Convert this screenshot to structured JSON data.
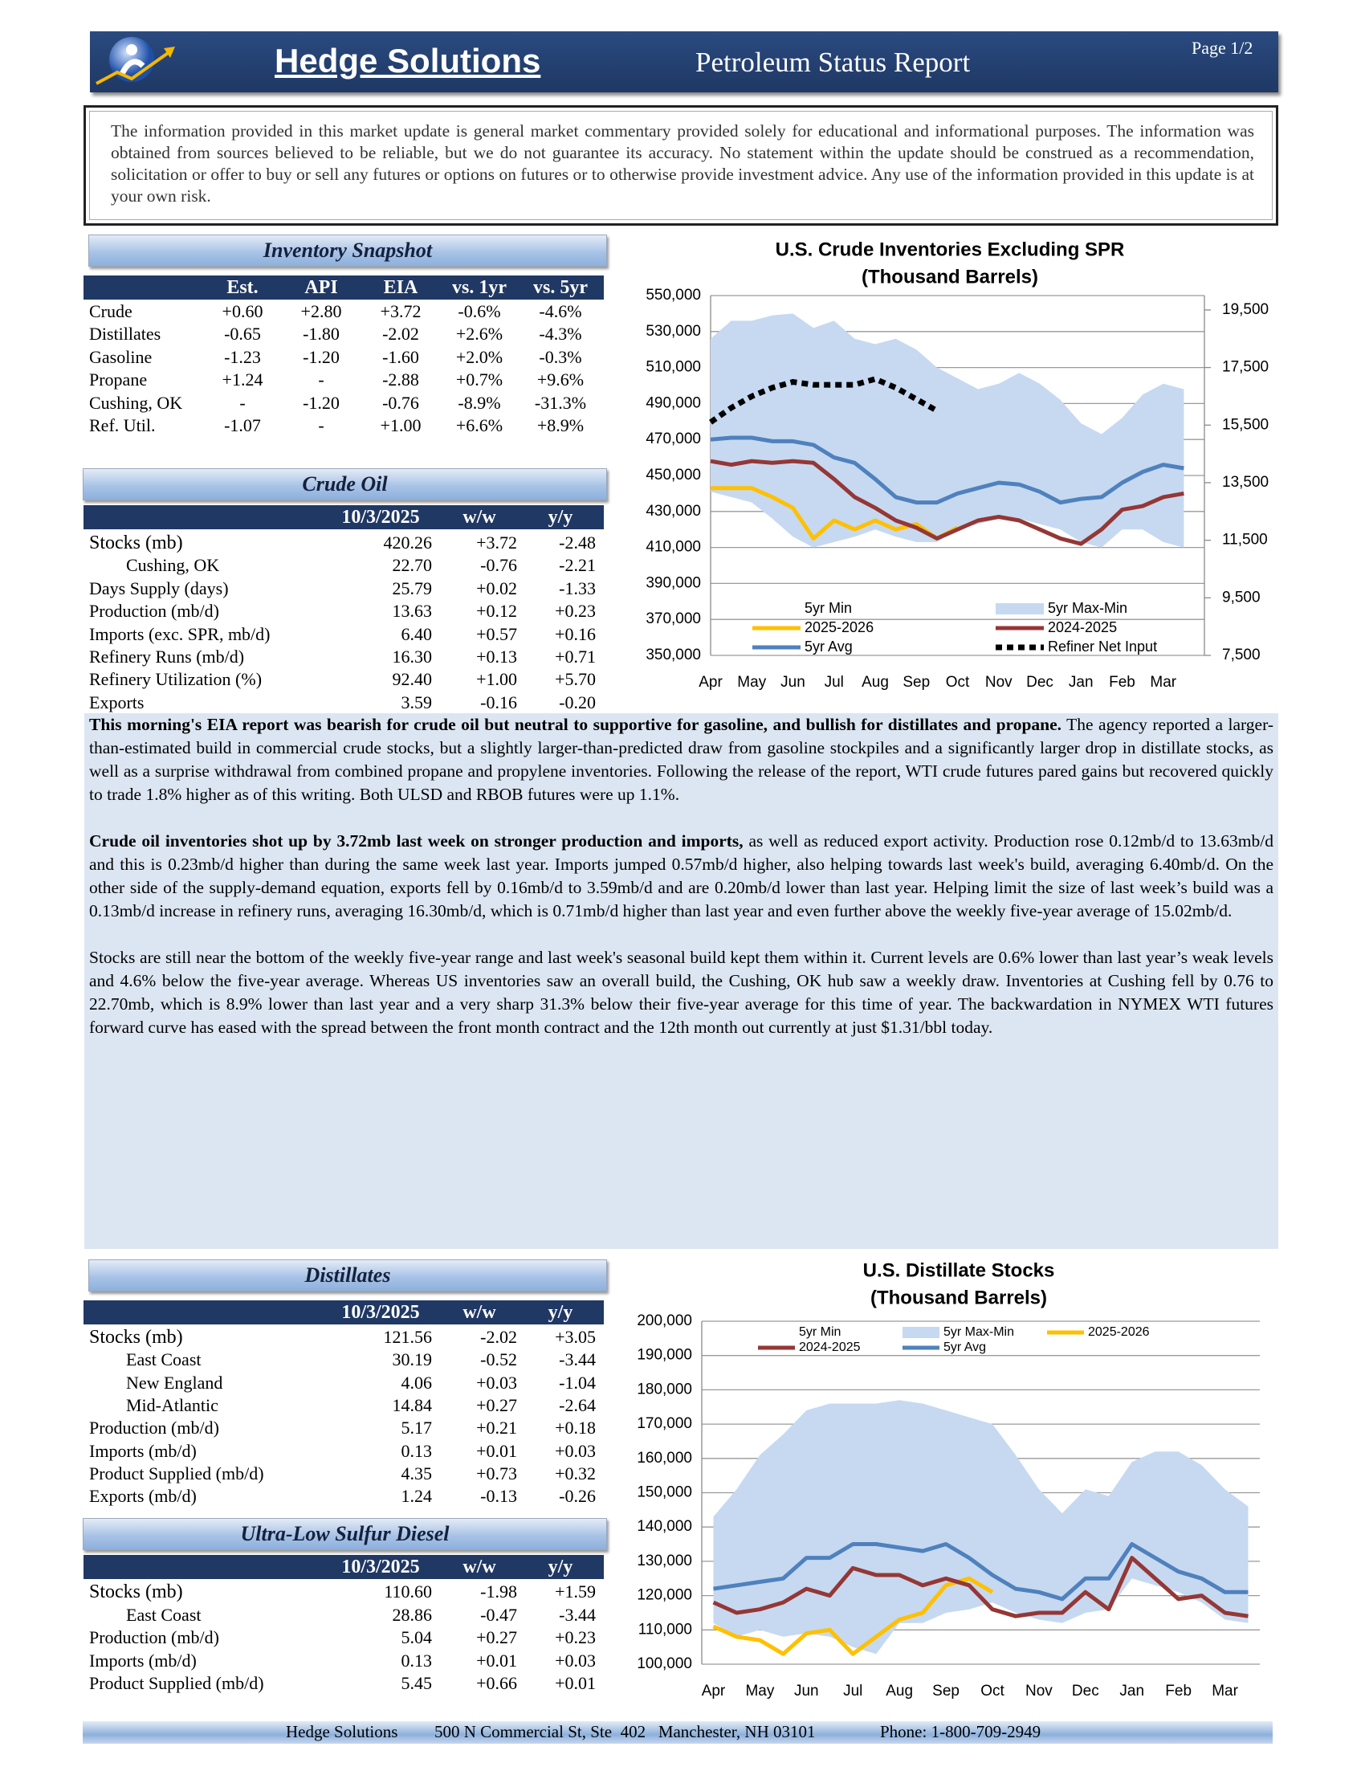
{
  "header": {
    "brand": "Hedge Solutions",
    "title": "Petroleum Status Report",
    "page": "Page 1/2"
  },
  "disclaimer": "The information provided in this market update is general market commentary provided solely for educational and informational purposes.  The information was obtained from sources believed to be reliable, but we do not guarantee its accuracy.  No statement within the update should be construed as a recommendation, solicitation or offer to buy or sell any futures or options on futures or to otherwise provide investment advice.  Any use of the information provided in this update is at your own risk.",
  "inventory_snapshot": {
    "title": "Inventory Snapshot",
    "columns": [
      "Est.",
      "API",
      "EIA",
      "vs. 1yr",
      "vs. 5yr"
    ],
    "rows": [
      [
        "Crude",
        "+0.60",
        "+2.80",
        "+3.72",
        "-0.6%",
        "-4.6%"
      ],
      [
        "Distillates",
        "-0.65",
        "-1.80",
        "-2.02",
        "+2.6%",
        "-4.3%"
      ],
      [
        "Gasoline",
        "-1.23",
        "-1.20",
        "-1.60",
        "+2.0%",
        "-0.3%"
      ],
      [
        "Propane",
        "+1.24",
        "-",
        "-2.88",
        "+0.7%",
        "+9.6%"
      ],
      [
        "Cushing, OK",
        "-",
        "-1.20",
        "-0.76",
        "-8.9%",
        "-31.3%"
      ],
      [
        "Ref. Util.",
        "-1.07",
        "-",
        "+1.00",
        "+6.6%",
        "+8.9%"
      ]
    ]
  },
  "crude_oil": {
    "title": "Crude Oil",
    "columns": [
      "10/3/2025",
      "w/w",
      "y/y"
    ],
    "rows": [
      [
        "Stocks (mb)",
        "420.26",
        "+3.72",
        "-2.48"
      ],
      [
        "Cushing, OK",
        "22.70",
        "-0.76",
        "-2.21"
      ],
      [
        "Days Supply (days)",
        "25.79",
        "+0.02",
        "-1.33"
      ],
      [
        "Production (mb/d)",
        "13.63",
        "+0.12",
        "+0.23"
      ],
      [
        "Imports (exc. SPR, mb/d)",
        "6.40",
        "+0.57",
        "+0.16"
      ],
      [
        "Refinery Runs (mb/d)",
        "16.30",
        "+0.13",
        "+0.71"
      ],
      [
        "Refinery Utilization (%)",
        "92.40",
        "+1.00",
        "+5.70"
      ],
      [
        "Exports",
        "3.59",
        "-0.16",
        "-0.20"
      ]
    ]
  },
  "commentary": {
    "paragraphs": [
      {
        "lead": "This morning's EIA report was bearish for crude oil but neutral to supportive for gasoline, and bullish for distillates and propane.",
        "text": "The agency reported a larger-than-estimated build in commercial crude stocks, but a slightly larger-than-predicted draw from gasoline stockpiles and a significantly larger drop in distillate stocks, as well as a surprise withdrawal from combined propane and propylene inventories. Following the release of the report, WTI crude futures pared gains but recovered quickly to trade 1.8% higher as of this writing. Both ULSD and RBOB futures were up 1.1%."
      },
      {
        "lead": "Crude oil inventories shot up by 3.72mb last week on stronger production and imports,",
        "text": "as well as reduced export activity. Production rose 0.12mb/d to 13.63mb/d and this is 0.23mb/d higher than during the same week last year. Imports jumped 0.57mb/d higher, also helping towards last week's build, averaging 6.40mb/d. On the other side of the supply-demand equation, exports fell by 0.16mb/d to 3.59mb/d and are 0.20mb/d lower than last year. Helping limit the size of last week’s build was a 0.13mb/d increase in refinery runs, averaging 16.30mb/d, which is 0.71mb/d higher than last year and even further above the weekly five-year average of 15.02mb/d."
      },
      {
        "text": "Stocks are still near the bottom of the weekly five-year range and last week's seasonal build kept them within it. Current levels are 0.6% lower than last year’s weak levels and 4.6% below the five-year average. Whereas US inventories saw an overall build, the Cushing, OK hub saw a weekly draw. Inventories at Cushing fell by 0.76 to 22.70mb, which is 8.9% lower than last year and a very sharp 31.3% below their five-year average for this time of year. The backwardation in NYMEX WTI futures forward curve has eased with the spread between the front month contract and the 12th month out currently at just $1.31/bbl today."
      }
    ]
  },
  "chart_data": [
    {
      "type": "line",
      "title": "U.S. Crude Inventories Excluding SPR",
      "subtitle": "(Thousand Barrels)",
      "categories": [
        "Apr",
        null,
        "May",
        null,
        "Jun",
        null,
        "Jul",
        null,
        "Aug",
        null,
        "Sep",
        null,
        "Oct",
        null,
        "Nov",
        null,
        "Dec",
        null,
        "Jan",
        null,
        "Feb",
        null,
        "Mar",
        null
      ],
      "ylim": [
        350000,
        550000
      ],
      "yticks": [
        {
          "value": 350000,
          "label": "350,000"
        },
        {
          "value": 370000,
          "label": "370,000"
        },
        {
          "value": 390000,
          "label": "390,000"
        },
        {
          "value": 410000,
          "label": "410,000"
        },
        {
          "value": 430000,
          "label": "430,000"
        },
        {
          "value": 450000,
          "label": "450,000"
        },
        {
          "value": 470000,
          "label": "470,000"
        },
        {
          "value": 490000,
          "label": "490,000"
        },
        {
          "value": 510000,
          "label": "510,000"
        },
        {
          "value": 530000,
          "label": "530,000"
        },
        {
          "value": 550000,
          "label": "550,000"
        }
      ],
      "y2lim": [
        7500,
        20000
      ],
      "y2ticks": [
        {
          "value": 7500,
          "label": "7,500"
        },
        {
          "value": 9500,
          "label": "9,500"
        },
        {
          "value": 11500,
          "label": "11,500"
        },
        {
          "value": 13500,
          "label": "13,500"
        },
        {
          "value": 15500,
          "label": "15,500"
        },
        {
          "value": 17500,
          "label": "17,500"
        },
        {
          "value": 19500,
          "label": "19,500"
        }
      ],
      "grid": true,
      "legend": "bottom",
      "series": [
        {
          "name": "5yr Min",
          "style": "base",
          "values": [
            441000,
            438000,
            435000,
            426000,
            416000,
            410000,
            413000,
            416000,
            420000,
            416000,
            413000,
            413000,
            420000,
            423000,
            426000,
            426000,
            423000,
            420000,
            413000,
            410000,
            420000,
            420000,
            413000,
            410000
          ]
        },
        {
          "name": "5yr Max-Min",
          "style": "stacked",
          "color": "#c6d9f1",
          "values": [
            85000,
            98000,
            101000,
            113000,
            124000,
            122000,
            123000,
            110000,
            103000,
            110000,
            107000,
            97000,
            84000,
            75000,
            75000,
            81000,
            78000,
            72000,
            66000,
            63000,
            62000,
            75000,
            88000,
            88000
          ]
        },
        {
          "name": "2025-2026",
          "style": "line",
          "color": "#ffc000",
          "values": [
            443000,
            443000,
            443000,
            438000,
            432000,
            415000,
            425000,
            420000,
            425000,
            420000,
            423000,
            415000,
            421000,
            null,
            null,
            null,
            null,
            null,
            null,
            null,
            null,
            null,
            null,
            null
          ]
        },
        {
          "name": "2024-2025",
          "style": "line",
          "color": "#953735",
          "values": [
            458000,
            456000,
            458000,
            457000,
            458000,
            457000,
            448000,
            438000,
            432000,
            425000,
            421000,
            415000,
            420000,
            425000,
            427000,
            425000,
            420000,
            415000,
            412000,
            420000,
            431000,
            433000,
            438000,
            440000
          ]
        },
        {
          "name": "5yr Avg",
          "style": "line",
          "color": "#4f81bd",
          "values": [
            470000,
            471000,
            471000,
            469000,
            469000,
            467000,
            460000,
            457000,
            448000,
            438000,
            435000,
            435000,
            440000,
            443000,
            446000,
            445000,
            441000,
            435000,
            437000,
            438000,
            446000,
            452000,
            456000,
            454000
          ]
        },
        {
          "name": "Refiner Net Input",
          "style": "dotted",
          "color": "#000000",
          "axis": "y2",
          "values": [
            15600,
            16100,
            16500,
            16800,
            17000,
            16900,
            16900,
            16900,
            17100,
            16800,
            16400,
            16000,
            null,
            null,
            null,
            null,
            null,
            null,
            null,
            null,
            null,
            null,
            null,
            null
          ]
        }
      ]
    },
    {
      "type": "line",
      "title": "U.S. Distillate Stocks",
      "subtitle": "(Thousand Barrels)",
      "categories": [
        "Apr",
        null,
        "May",
        null,
        "Jun",
        null,
        "Jul",
        null,
        "Aug",
        null,
        "Sep",
        null,
        "Oct",
        null,
        "Nov",
        null,
        "Dec",
        null,
        "Jan",
        null,
        "Feb",
        null,
        "Mar",
        null
      ],
      "ylim": [
        100000,
        200000
      ],
      "yticks": [
        {
          "value": 100000,
          "label": "100,000"
        },
        {
          "value": 110000,
          "label": "110,000"
        },
        {
          "value": 120000,
          "label": "120,000"
        },
        {
          "value": 130000,
          "label": "130,000"
        },
        {
          "value": 140000,
          "label": "140,000"
        },
        {
          "value": 150000,
          "label": "150,000"
        },
        {
          "value": 160000,
          "label": "160,000"
        },
        {
          "value": 170000,
          "label": "170,000"
        },
        {
          "value": 180000,
          "label": "180,000"
        },
        {
          "value": 190000,
          "label": "190,000"
        },
        {
          "value": 200000,
          "label": "200,000"
        }
      ],
      "grid": true,
      "legend": "top",
      "series": [
        {
          "name": "5yr Min",
          "style": "base",
          "values": [
            112000,
            108000,
            110000,
            108000,
            109000,
            108000,
            105000,
            103000,
            112000,
            112000,
            115000,
            116000,
            118000,
            115000,
            113000,
            112000,
            115000,
            116000,
            125000,
            123000,
            121000,
            118000,
            113000,
            112000
          ]
        },
        {
          "name": "5yr Max-Min",
          "style": "stacked",
          "color": "#c6d9f1",
          "values": [
            31000,
            43000,
            51000,
            59000,
            65000,
            68000,
            71000,
            73000,
            65000,
            64000,
            59000,
            56000,
            52000,
            46000,
            38000,
            32000,
            36000,
            33000,
            34000,
            39000,
            41000,
            40000,
            38000,
            34000
          ]
        },
        {
          "name": "2025-2026",
          "style": "line",
          "color": "#ffc000",
          "values": [
            111000,
            108000,
            107000,
            103000,
            109000,
            110000,
            103000,
            108000,
            113000,
            115000,
            123000,
            125000,
            121000,
            null,
            null,
            null,
            null,
            null,
            null,
            null,
            null,
            null,
            null,
            null
          ]
        },
        {
          "name": "2024-2025",
          "style": "line",
          "color": "#953735",
          "values": [
            118000,
            115000,
            116000,
            118000,
            122000,
            120000,
            128000,
            126000,
            126000,
            123000,
            125000,
            123000,
            116000,
            114000,
            115000,
            115000,
            121000,
            116000,
            131000,
            125000,
            119000,
            120000,
            115000,
            114000
          ]
        },
        {
          "name": "5yr Avg",
          "style": "line",
          "color": "#4f81bd",
          "values": [
            122000,
            123000,
            124000,
            125000,
            131000,
            131000,
            135000,
            135000,
            134000,
            133000,
            135000,
            131000,
            126000,
            122000,
            121000,
            119000,
            125000,
            125000,
            135000,
            131000,
            127000,
            125000,
            121000,
            121000
          ]
        }
      ]
    }
  ],
  "distillates": {
    "title": "Distillates",
    "columns": [
      "10/3/2025",
      "w/w",
      "y/y"
    ],
    "rows": [
      [
        "Stocks (mb)",
        "121.56",
        "-2.02",
        "+3.05"
      ],
      [
        "East Coast",
        "30.19",
        "-0.52",
        "-3.44"
      ],
      [
        "New England",
        "4.06",
        "+0.03",
        "-1.04"
      ],
      [
        "Mid-Atlantic",
        "14.84",
        "+0.27",
        "-2.64"
      ],
      [
        "Production (mb/d)",
        "5.17",
        "+0.21",
        "+0.18"
      ],
      [
        "Imports (mb/d)",
        "0.13",
        "+0.01",
        "+0.03"
      ],
      [
        "Product Supplied (mb/d)",
        "4.35",
        "+0.73",
        "+0.32"
      ],
      [
        "Exports (mb/d)",
        "1.24",
        "-0.13",
        "-0.26"
      ]
    ]
  },
  "ulsd": {
    "title": "Ultra-Low Sulfur Diesel",
    "columns": [
      "10/3/2025",
      "w/w",
      "y/y"
    ],
    "rows": [
      [
        "Stocks (mb)",
        "110.60",
        "-1.98",
        "+1.59"
      ],
      [
        "East Coast",
        "28.86",
        "-0.47",
        "-3.44"
      ],
      [
        "Production (mb/d)",
        "5.04",
        "+0.27",
        "+0.23"
      ],
      [
        "Imports (mb/d)",
        "0.13",
        "+0.01",
        "+0.03"
      ],
      [
        "Product Supplied (mb/d)",
        "5.45",
        "+0.66",
        "+0.01"
      ]
    ]
  },
  "footer": {
    "company": "Hedge Solutions",
    "address": "500 N Commercial St, Ste  402   Manchester, NH 03101",
    "phone": "Phone: 1-800-709-2949"
  }
}
